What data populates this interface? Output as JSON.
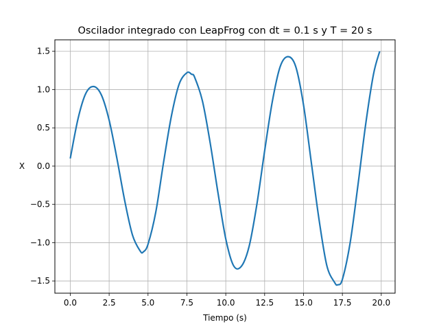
{
  "chart_data": {
    "type": "line",
    "title": "Oscilador integrado con LeapFrog con dt = 0.1 s y T = 20 s",
    "xlabel": "Tiempo (s)",
    "ylabel": "X",
    "xlim": [
      -0.99,
      20.89
    ],
    "ylim": [
      -1.66,
      1.65
    ],
    "xticks": [
      0.0,
      2.5,
      5.0,
      7.5,
      10.0,
      12.5,
      15.0,
      17.5,
      20.0
    ],
    "xtick_labels": [
      "0.0",
      "2.5",
      "5.0",
      "7.5",
      "10.0",
      "12.5",
      "15.0",
      "17.5",
      "20.0"
    ],
    "yticks": [
      -1.5,
      -1.0,
      -0.5,
      0.0,
      0.5,
      1.0,
      1.5
    ],
    "ytick_labels": [
      "−1.5",
      "−1.0",
      "−0.5",
      "0.0",
      "0.5",
      "1.0",
      "1.5"
    ],
    "grid": true,
    "line_color": "#1f77b4",
    "series": [
      {
        "x": [
          0.0,
          0.5,
          1.0,
          1.5,
          2.0,
          2.5,
          3.0,
          3.5,
          4.0,
          4.5,
          4.7,
          5.0,
          5.5,
          6.0,
          6.5,
          7.0,
          7.5,
          7.8,
          8.0,
          8.5,
          9.0,
          9.5,
          10.0,
          10.5,
          11.0,
          11.5,
          12.0,
          12.5,
          13.0,
          13.5,
          14.0,
          14.5,
          15.0,
          15.5,
          16.0,
          16.5,
          17.0,
          17.2,
          17.5,
          18.0,
          18.5,
          19.0,
          19.5,
          19.9
        ],
        "y": [
          0.1,
          0.62,
          0.95,
          1.04,
          0.93,
          0.6,
          0.1,
          -0.45,
          -0.9,
          -1.11,
          -1.12,
          -1.02,
          -0.6,
          0.05,
          0.65,
          1.07,
          1.22,
          1.2,
          1.16,
          0.85,
          0.3,
          -0.35,
          -0.95,
          -1.3,
          -1.31,
          -1.05,
          -0.5,
          0.2,
          0.85,
          1.3,
          1.43,
          1.3,
          0.8,
          0.05,
          -0.7,
          -1.3,
          -1.52,
          -1.55,
          -1.48,
          -1.0,
          -0.25,
          0.55,
          1.2,
          1.5
        ]
      }
    ]
  }
}
